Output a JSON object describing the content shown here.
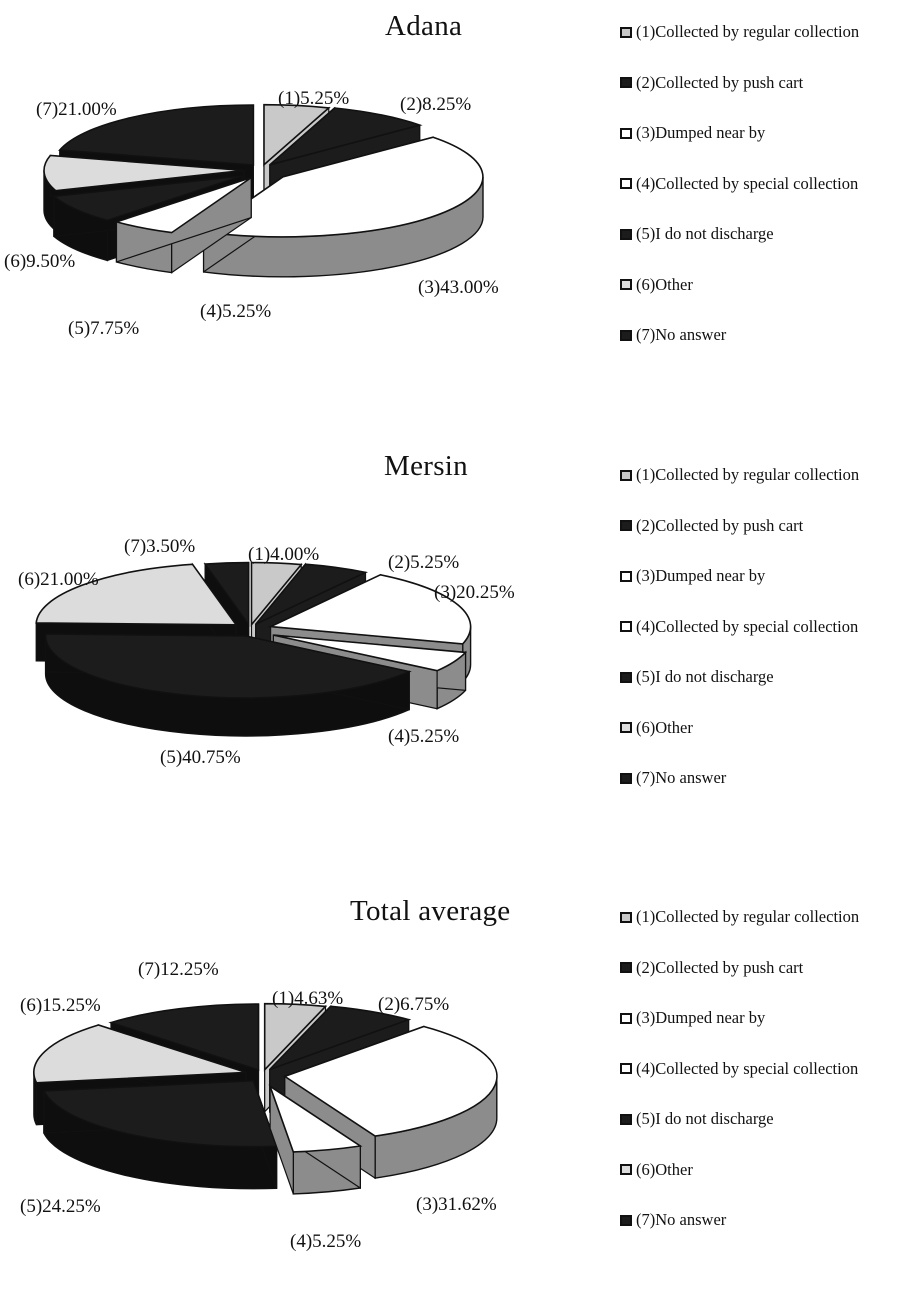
{
  "legend_items": [
    "(1)Collected by regular collection",
    "(2)Collected by push cart",
    "(3)Dumped near by",
    "(4)Collected by special collection",
    "(5)I do not discharge",
    "(6)Other",
    "(7)No answer"
  ],
  "colors": {
    "s1": "#c9c9c9",
    "s2": "#1c1c1c",
    "s3": "#ffffff",
    "s4": "#ffffff",
    "s5": "#1c1c1c",
    "s6": "#dcdcdc",
    "s7": "#1c1c1c",
    "side_grey": "#8c8c8c",
    "side_dark": "#0e0e0e",
    "outline": "#111111"
  },
  "chart_data": [
    {
      "type": "pie",
      "title": "Adana",
      "categories": [
        "(1)",
        "(2)",
        "(3)",
        "(4)",
        "(5)",
        "(6)",
        "(7)"
      ],
      "values": [
        5.25,
        8.25,
        43.0,
        5.25,
        7.75,
        9.5,
        21.0
      ],
      "labels": [
        "(1)5.25%",
        "(2)8.25%",
        "(3)43.00%",
        "(4)5.25%",
        "(5)7.75%",
        "(6)9.50%",
        "(7)21.00%"
      ],
      "legend_position": "right",
      "style": "3d-exploded"
    },
    {
      "type": "pie",
      "title": "Mersin",
      "categories": [
        "(1)",
        "(2)",
        "(3)",
        "(4)",
        "(5)",
        "(6)",
        "(7)"
      ],
      "values": [
        4.0,
        5.25,
        20.25,
        5.25,
        40.75,
        21.0,
        3.5
      ],
      "labels": [
        "(1)4.00%",
        "(2)5.25%",
        "(3)20.25%",
        "(4)5.25%",
        "(5)40.75%",
        "(6)21.00%",
        "(7)3.50%"
      ],
      "legend_position": "right",
      "style": "3d-exploded"
    },
    {
      "type": "pie",
      "title": "Total average",
      "categories": [
        "(1)",
        "(2)",
        "(3)",
        "(4)",
        "(5)",
        "(6)",
        "(7)"
      ],
      "values": [
        4.63,
        6.75,
        31.62,
        5.25,
        24.25,
        15.25,
        12.25
      ],
      "labels": [
        "(1)4.63%",
        "(2)6.75%",
        "(3)31.62%",
        "(4)5.25%",
        "(5)24.25%",
        "(6)15.25%",
        "(7)12.25%"
      ],
      "legend_position": "right",
      "style": "3d-exploded"
    }
  ]
}
